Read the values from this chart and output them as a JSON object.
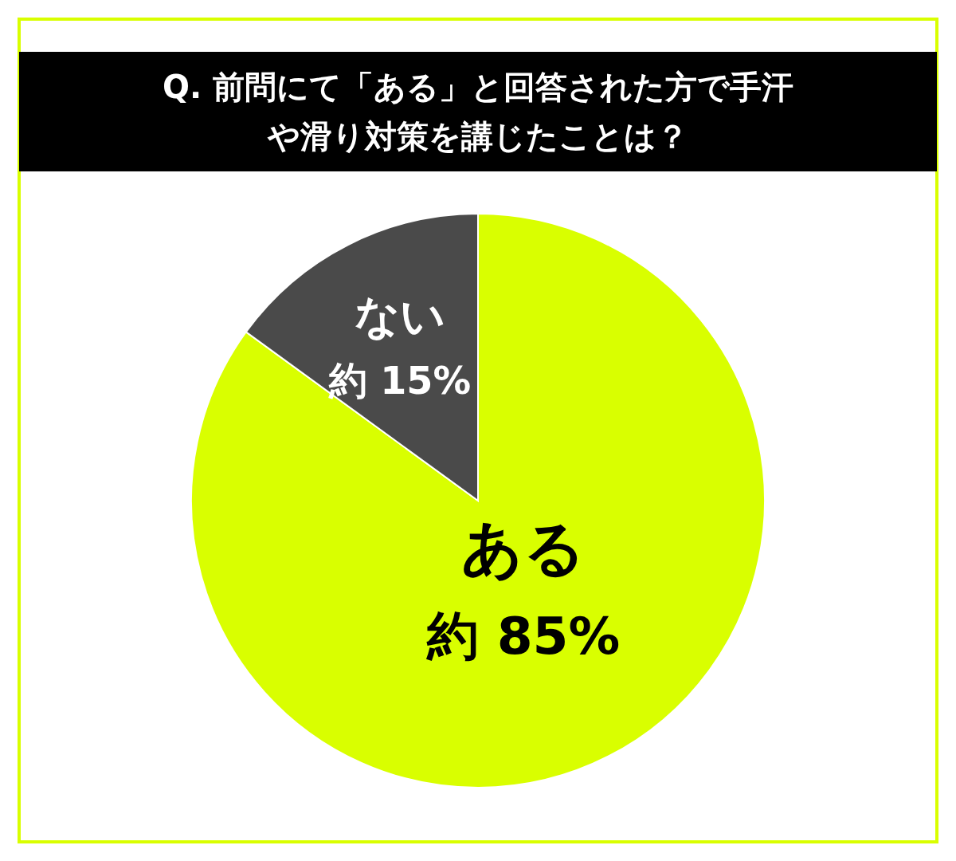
{
  "chart_data": {
    "type": "pie",
    "title": "Q. 前問にて「ある」と回答された方で手汗や滑り対策を講じたことは？",
    "categories": [
      "ある",
      "ない"
    ],
    "values": [
      85,
      15
    ],
    "colors": [
      "#d9ff00",
      "#4a4a4a"
    ],
    "value_labels": [
      "約 85%",
      "約 15%"
    ]
  }
}
